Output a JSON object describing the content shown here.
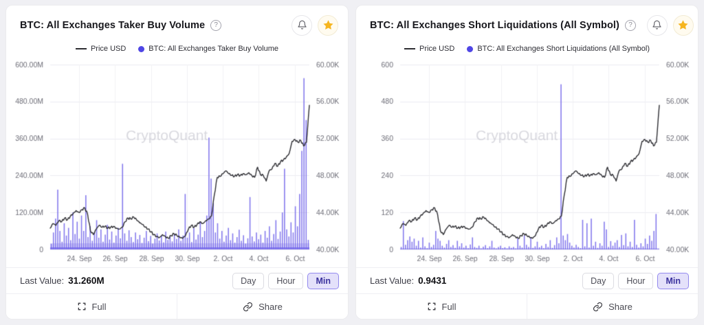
{
  "page": {
    "background": "#f0f0f4"
  },
  "colors": {
    "bar": "#7569ea",
    "price_line": "#2c2c31",
    "legend_dot": "#4f46e5",
    "star": "#f6b51e",
    "active_range_bg": "#e4e1fa",
    "active_range_border": "#9288ee"
  },
  "icons": {
    "help": "?",
    "bell": "bell-outline",
    "star": "filled-star",
    "full": "fullscreen-corners",
    "share": "chain-link"
  },
  "panels": [
    {
      "title": "BTC: All Exchanges Taker Buy Volume",
      "help_glyph": "?",
      "legend": [
        {
          "label": "Price USD",
          "marker": "line"
        },
        {
          "label": "BTC: All Exchanges Taker Buy Volume",
          "marker": "dot"
        }
      ],
      "last_value_label": "Last Value:",
      "last_value": "31.260M",
      "range_buttons": [
        "Day",
        "Hour",
        "Min"
      ],
      "active_range": "Min",
      "footer": {
        "full_label": "Full",
        "share_label": "Share"
      }
    },
    {
      "title": "BTC: All Exchanges Short Liquidations (All Symbol)",
      "help_glyph": "?",
      "legend": [
        {
          "label": "Price USD",
          "marker": "line"
        },
        {
          "label": "BTC: All Exchanges Short Liquidations (All Symbol)",
          "marker": "dot"
        }
      ],
      "last_value_label": "Last Value:",
      "last_value": "0.9431",
      "range_buttons": [
        "Day",
        "Hour",
        "Min"
      ],
      "active_range": "Min",
      "footer": {
        "full_label": "Full",
        "share_label": "Share"
      }
    }
  ],
  "chart_data": [
    {
      "type": "mixed",
      "title": "BTC: All Exchanges Taker Buy Volume",
      "watermark": "CryptoQuant",
      "grid": true,
      "x_ticks": [
        "24. Sep",
        "26. Sep",
        "28. Sep",
        "30. Sep",
        "2. Oct",
        "4. Oct",
        "6. Oct"
      ],
      "left_axis": {
        "ticks": [
          "600.00M",
          "480.00M",
          "360.00M",
          "240.00M",
          "120.00M",
          "0"
        ],
        "min": 0,
        "max": 600
      },
      "right_axis": {
        "ticks": [
          "60.00K",
          "56.00K",
          "52.00K",
          "48.00K",
          "44.00K",
          "40.00K"
        ],
        "min": 40,
        "max": 60
      },
      "dense_base": true,
      "series": [
        {
          "name": "Price USD",
          "type": "line",
          "axis": "right",
          "color": "#2c2c31",
          "unit": "K USD",
          "values": [
            42.3,
            42.8,
            42.6,
            43.1,
            43.0,
            43.4,
            43.2,
            43.6,
            43.9,
            44.2,
            44.0,
            44.3,
            44.5,
            43.8,
            42.0,
            41.6,
            42.2,
            42.6,
            42.4,
            42.5,
            42.3,
            42.4,
            42.5,
            42.3,
            42.2,
            42.4,
            43.0,
            43.4,
            43.3,
            43.5,
            43.2,
            42.9,
            42.7,
            42.4,
            42.2,
            41.9,
            41.6,
            41.4,
            41.3,
            41.6,
            41.4,
            41.2,
            41.5,
            41.7,
            41.5,
            41.3,
            41.2,
            41.5,
            42.2,
            42.6,
            42.4,
            42.7,
            43.0,
            42.8,
            43.1,
            43.3,
            43.6,
            45.9,
            47.8,
            47.9,
            48.2,
            48.5,
            48.2,
            48.0,
            47.9,
            48.1,
            48.0,
            48.2,
            48.1,
            48.3,
            48.0,
            47.8,
            48.9,
            48.1,
            48.0,
            47.4,
            48.5,
            48.7,
            49.3,
            49.0,
            49.5,
            49.7,
            50.0,
            50.4,
            51.7,
            51.9,
            51.6,
            51.8,
            51.2,
            51.6,
            55.6
          ]
        },
        {
          "name": "BTC: All Exchanges Taker Buy Volume",
          "type": "bar",
          "axis": "left",
          "color": "#7569ea",
          "unit": "M",
          "values": [
            18,
            55,
            100,
            194,
            60,
            25,
            85,
            45,
            70,
            30,
            120,
            50,
            90,
            35,
            110,
            60,
            176,
            40,
            75,
            28,
            55,
            95,
            38,
            65,
            25,
            48,
            80,
            32,
            58,
            22,
            45,
            70,
            36,
            278,
            52,
            28,
            62,
            40,
            24,
            55,
            33,
            47,
            21,
            38,
            60,
            27,
            44,
            19,
            35,
            52,
            29,
            46,
            23,
            58,
            31,
            42,
            26,
            50,
            34,
            65,
            28,
            45,
            180,
            38,
            55,
            24,
            70,
            32,
            48,
            90,
            40,
            60,
            110,
            363,
            230,
            150,
            55,
            85,
            35,
            60,
            25,
            45,
            70,
            30,
            52,
            22,
            40,
            64,
            28,
            46,
            19,
            36,
            170,
            42,
            26,
            55,
            33,
            48,
            22,
            60,
            38,
            75,
            28,
            50,
            95,
            34,
            58,
            120,
            262,
            65,
            42,
            88,
            55,
            140,
            75,
            180,
            320,
            556,
            420,
            31
          ]
        }
      ]
    },
    {
      "type": "mixed",
      "title": "BTC: All Exchanges Short Liquidations (All Symbol)",
      "watermark": "CryptoQuant",
      "grid": true,
      "x_ticks": [
        "24. Sep",
        "26. Sep",
        "28. Sep",
        "30. Sep",
        "2. Oct",
        "4. Oct",
        "6. Oct"
      ],
      "left_axis": {
        "ticks": [
          "600",
          "480",
          "360",
          "240",
          "120",
          "0"
        ],
        "min": 0,
        "max": 600
      },
      "right_axis": {
        "ticks": [
          "60.00K",
          "56.00K",
          "52.00K",
          "48.00K",
          "44.00K",
          "40.00K"
        ],
        "min": 40,
        "max": 60
      },
      "dense_base": false,
      "series": [
        {
          "name": "Price USD",
          "type": "line",
          "axis": "right",
          "color": "#2c2c31",
          "unit": "K USD",
          "values": [
            42.3,
            42.8,
            42.6,
            43.1,
            43.0,
            43.4,
            43.2,
            43.6,
            43.9,
            44.2,
            44.0,
            44.3,
            44.5,
            43.8,
            42.0,
            41.6,
            42.2,
            42.6,
            42.4,
            42.5,
            42.3,
            42.4,
            42.5,
            42.3,
            42.2,
            42.4,
            43.0,
            43.4,
            43.3,
            43.5,
            43.2,
            42.9,
            42.7,
            42.4,
            42.2,
            41.9,
            41.6,
            41.4,
            41.3,
            41.6,
            41.4,
            41.2,
            41.5,
            41.7,
            41.5,
            41.3,
            41.2,
            41.5,
            42.2,
            42.6,
            42.4,
            42.7,
            43.0,
            42.8,
            43.1,
            43.3,
            43.6,
            45.9,
            47.8,
            47.9,
            48.2,
            48.5,
            48.2,
            48.0,
            47.9,
            48.1,
            48.0,
            48.2,
            48.1,
            48.3,
            48.0,
            47.8,
            48.9,
            48.1,
            48.0,
            47.4,
            48.5,
            48.7,
            49.3,
            49.0,
            49.5,
            49.7,
            50.0,
            50.4,
            51.7,
            51.9,
            51.6,
            51.8,
            51.2,
            51.6,
            55.6
          ]
        },
        {
          "name": "BTC: All Exchanges Short Liquidations (All Symbol)",
          "type": "bar",
          "axis": "left",
          "color": "#7569ea",
          "unit": "",
          "values": [
            8,
            92,
            15,
            30,
            42,
            25,
            35,
            12,
            28,
            6,
            39,
            10,
            4,
            22,
            8,
            15,
            60,
            35,
            28,
            12,
            6,
            18,
            30,
            8,
            14,
            5,
            28,
            10,
            20,
            6,
            12,
            4,
            16,
            39,
            8,
            5,
            12,
            3,
            9,
            14,
            4,
            10,
            28,
            6,
            3,
            8,
            12,
            4,
            7,
            3,
            10,
            5,
            8,
            3,
            36,
            12,
            6,
            45,
            15,
            8,
            39,
            5,
            10,
            25,
            7,
            12,
            4,
            18,
            8,
            30,
            5,
            14,
            39,
            20,
            536,
            45,
            30,
            50,
            22,
            12,
            6,
            15,
            8,
            4,
            96,
            10,
            85,
            6,
            100,
            12,
            25,
            5,
            20,
            12,
            90,
            65,
            8,
            27,
            12,
            22,
            30,
            8,
            47,
            14,
            52,
            10,
            25,
            8,
            96,
            15,
            6,
            20,
            10,
            35,
            18,
            45,
            28,
            60,
            115,
            1
          ]
        }
      ]
    }
  ]
}
